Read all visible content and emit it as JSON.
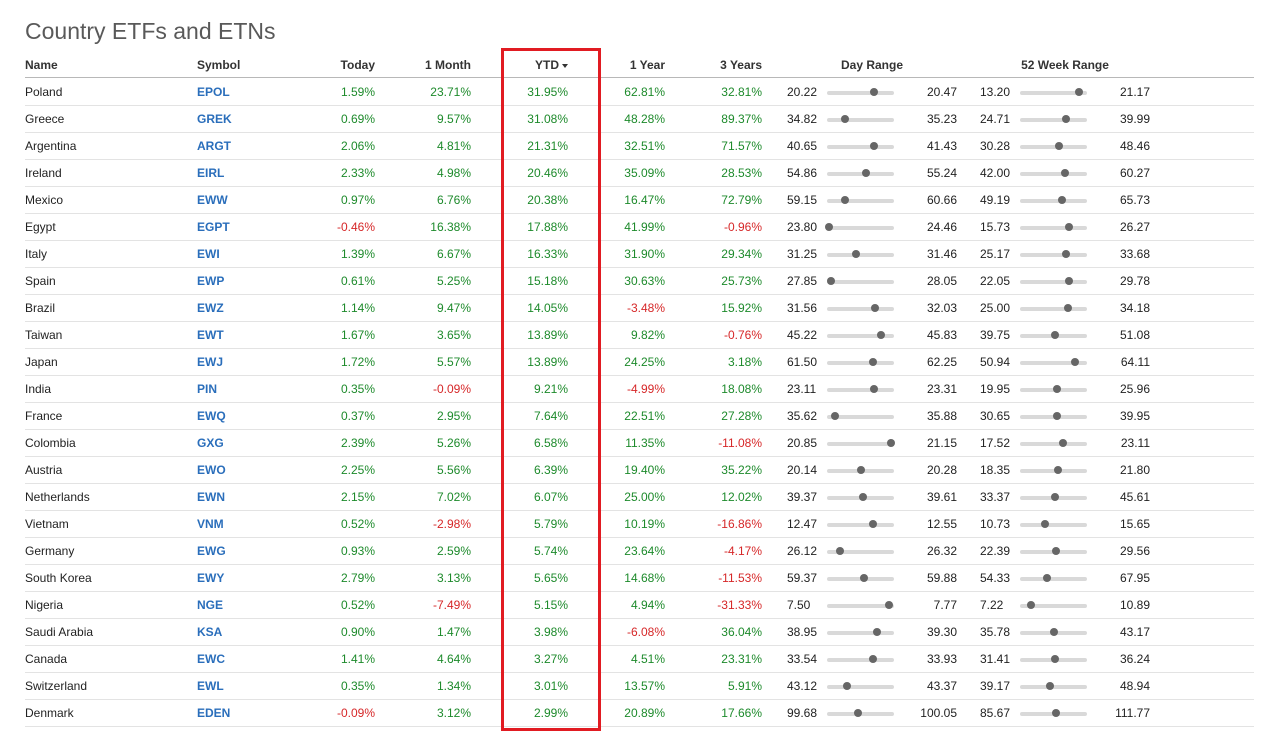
{
  "page": {
    "title": "Country ETFs and ETNs"
  },
  "table": {
    "headers": {
      "name": "Name",
      "symbol": "Symbol",
      "today": "Today",
      "month": "1 Month",
      "ytd": "YTD",
      "year": "1 Year",
      "years3": "3 Years",
      "day_range": "Day Range",
      "week52_range": "52 Week Range"
    },
    "sorted_column": "YTD",
    "sort_direction": "descending",
    "colors": {
      "positive": "#1d8a2b",
      "negative": "#d62728",
      "symbol": "#2a6ebb",
      "highlight_border": "#e11b22"
    },
    "rows": [
      {
        "name": "Poland",
        "symbol": "EPOL",
        "today": "1.59%",
        "month": "23.71%",
        "ytd": "31.95%",
        "year": "62.81%",
        "years3": "32.81%",
        "day_low": "20.22",
        "day_high": "20.47",
        "day_pos": 0.7,
        "w_low": "13.20",
        "w_high": "21.17",
        "w_pos": 0.88
      },
      {
        "name": "Greece",
        "symbol": "GREK",
        "today": "0.69%",
        "month": "9.57%",
        "ytd": "31.08%",
        "year": "48.28%",
        "years3": "89.37%",
        "day_low": "34.82",
        "day_high": "35.23",
        "day_pos": 0.27,
        "w_low": "24.71",
        "w_high": "39.99",
        "w_pos": 0.68
      },
      {
        "name": "Argentina",
        "symbol": "ARGT",
        "today": "2.06%",
        "month": "4.81%",
        "ytd": "21.31%",
        "year": "32.51%",
        "years3": "71.57%",
        "day_low": "40.65",
        "day_high": "41.43",
        "day_pos": 0.7,
        "w_low": "30.28",
        "w_high": "48.46",
        "w_pos": 0.58
      },
      {
        "name": "Ireland",
        "symbol": "EIRL",
        "today": "2.33%",
        "month": "4.98%",
        "ytd": "20.46%",
        "year": "35.09%",
        "years3": "28.53%",
        "day_low": "54.86",
        "day_high": "55.24",
        "day_pos": 0.58,
        "w_low": "42.00",
        "w_high": "60.27",
        "w_pos": 0.67
      },
      {
        "name": "Mexico",
        "symbol": "EWW",
        "today": "0.97%",
        "month": "6.76%",
        "ytd": "20.38%",
        "year": "16.47%",
        "years3": "72.79%",
        "day_low": "59.15",
        "day_high": "60.66",
        "day_pos": 0.27,
        "w_low": "49.19",
        "w_high": "65.73",
        "w_pos": 0.62
      },
      {
        "name": "Egypt",
        "symbol": "EGPT",
        "today": "-0.46%",
        "month": "16.38%",
        "ytd": "17.88%",
        "year": "41.99%",
        "years3": "-0.96%",
        "day_low": "23.80",
        "day_high": "24.46",
        "day_pos": 0.03,
        "w_low": "15.73",
        "w_high": "26.27",
        "w_pos": 0.73
      },
      {
        "name": "Italy",
        "symbol": "EWI",
        "today": "1.39%",
        "month": "6.67%",
        "ytd": "16.33%",
        "year": "31.90%",
        "years3": "29.34%",
        "day_low": "31.25",
        "day_high": "31.46",
        "day_pos": 0.43,
        "w_low": "25.17",
        "w_high": "33.68",
        "w_pos": 0.69
      },
      {
        "name": "Spain",
        "symbol": "EWP",
        "today": "0.61%",
        "month": "5.25%",
        "ytd": "15.18%",
        "year": "30.63%",
        "years3": "25.73%",
        "day_low": "27.85",
        "day_high": "28.05",
        "day_pos": 0.06,
        "w_low": "22.05",
        "w_high": "29.78",
        "w_pos": 0.73
      },
      {
        "name": "Brazil",
        "symbol": "EWZ",
        "today": "1.14%",
        "month": "9.47%",
        "ytd": "14.05%",
        "year": "-3.48%",
        "years3": "15.92%",
        "day_low": "31.56",
        "day_high": "32.03",
        "day_pos": 0.72,
        "w_low": "25.00",
        "w_high": "34.18",
        "w_pos": 0.72
      },
      {
        "name": "Taiwan",
        "symbol": "EWT",
        "today": "1.67%",
        "month": "3.65%",
        "ytd": "13.89%",
        "year": "9.82%",
        "years3": "-0.76%",
        "day_low": "45.22",
        "day_high": "45.83",
        "day_pos": 0.8,
        "w_low": "39.75",
        "w_high": "51.08",
        "w_pos": 0.52
      },
      {
        "name": "Japan",
        "symbol": "EWJ",
        "today": "1.72%",
        "month": "5.57%",
        "ytd": "13.89%",
        "year": "24.25%",
        "years3": "3.18%",
        "day_low": "61.50",
        "day_high": "62.25",
        "day_pos": 0.68,
        "w_low": "50.94",
        "w_high": "64.11",
        "w_pos": 0.82
      },
      {
        "name": "India",
        "symbol": "PIN",
        "today": "0.35%",
        "month": "-0.09%",
        "ytd": "9.21%",
        "year": "-4.99%",
        "years3": "18.08%",
        "day_low": "23.11",
        "day_high": "23.31",
        "day_pos": 0.7,
        "w_low": "19.95",
        "w_high": "25.96",
        "w_pos": 0.55
      },
      {
        "name": "France",
        "symbol": "EWQ",
        "today": "0.37%",
        "month": "2.95%",
        "ytd": "7.64%",
        "year": "22.51%",
        "years3": "27.28%",
        "day_low": "35.62",
        "day_high": "35.88",
        "day_pos": 0.12,
        "w_low": "30.65",
        "w_high": "39.95",
        "w_pos": 0.55
      },
      {
        "name": "Colombia",
        "symbol": "GXG",
        "today": "2.39%",
        "month": "5.26%",
        "ytd": "6.58%",
        "year": "11.35%",
        "years3": "-11.08%",
        "day_low": "20.85",
        "day_high": "21.15",
        "day_pos": 0.95,
        "w_low": "17.52",
        "w_high": "23.11",
        "w_pos": 0.64
      },
      {
        "name": "Austria",
        "symbol": "EWO",
        "today": "2.25%",
        "month": "5.56%",
        "ytd": "6.39%",
        "year": "19.40%",
        "years3": "35.22%",
        "day_low": "20.14",
        "day_high": "20.28",
        "day_pos": 0.51,
        "w_low": "18.35",
        "w_high": "21.80",
        "w_pos": 0.56
      },
      {
        "name": "Netherlands",
        "symbol": "EWN",
        "today": "2.15%",
        "month": "7.02%",
        "ytd": "6.07%",
        "year": "25.00%",
        "years3": "12.02%",
        "day_low": "39.37",
        "day_high": "39.61",
        "day_pos": 0.53,
        "w_low": "33.37",
        "w_high": "45.61",
        "w_pos": 0.52
      },
      {
        "name": "Vietnam",
        "symbol": "VNM",
        "today": "0.52%",
        "month": "-2.98%",
        "ytd": "5.79%",
        "year": "10.19%",
        "years3": "-16.86%",
        "day_low": "12.47",
        "day_high": "12.55",
        "day_pos": 0.69,
        "w_low": "10.73",
        "w_high": "15.65",
        "w_pos": 0.38
      },
      {
        "name": "Germany",
        "symbol": "EWG",
        "today": "0.93%",
        "month": "2.59%",
        "ytd": "5.74%",
        "year": "23.64%",
        "years3": "-4.17%",
        "day_low": "26.12",
        "day_high": "26.32",
        "day_pos": 0.2,
        "w_low": "22.39",
        "w_high": "29.56",
        "w_pos": 0.54
      },
      {
        "name": "South Korea",
        "symbol": "EWY",
        "today": "2.79%",
        "month": "3.13%",
        "ytd": "5.65%",
        "year": "14.68%",
        "years3": "-11.53%",
        "day_low": "59.37",
        "day_high": "59.88",
        "day_pos": 0.55,
        "w_low": "54.33",
        "w_high": "67.95",
        "w_pos": 0.4
      },
      {
        "name": "Nigeria",
        "symbol": "NGE",
        "today": "0.52%",
        "month": "-7.49%",
        "ytd": "5.15%",
        "year": "4.94%",
        "years3": "-31.33%",
        "day_low": "7.50",
        "day_high": "7.77",
        "day_pos": 0.92,
        "w_low": "7.22",
        "w_high": "10.89",
        "w_pos": 0.16
      },
      {
        "name": "Saudi Arabia",
        "symbol": "KSA",
        "today": "0.90%",
        "month": "1.47%",
        "ytd": "3.98%",
        "year": "-6.08%",
        "years3": "36.04%",
        "day_low": "38.95",
        "day_high": "39.30",
        "day_pos": 0.75,
        "w_low": "35.78",
        "w_high": "43.17",
        "w_pos": 0.5
      },
      {
        "name": "Canada",
        "symbol": "EWC",
        "today": "1.41%",
        "month": "4.64%",
        "ytd": "3.27%",
        "year": "4.51%",
        "years3": "23.31%",
        "day_low": "33.54",
        "day_high": "33.93",
        "day_pos": 0.68,
        "w_low": "31.41",
        "w_high": "36.24",
        "w_pos": 0.52
      },
      {
        "name": "Switzerland",
        "symbol": "EWL",
        "today": "0.35%",
        "month": "1.34%",
        "ytd": "3.01%",
        "year": "13.57%",
        "years3": "5.91%",
        "day_low": "43.12",
        "day_high": "43.37",
        "day_pos": 0.3,
        "w_low": "39.17",
        "w_high": "48.94",
        "w_pos": 0.45
      },
      {
        "name": "Denmark",
        "symbol": "EDEN",
        "today": "-0.09%",
        "month": "3.12%",
        "ytd": "2.99%",
        "year": "20.89%",
        "years3": "17.66%",
        "day_low": "99.68",
        "day_high": "100.05",
        "day_pos": 0.47,
        "w_low": "85.67",
        "w_high": "111.77",
        "w_pos": 0.54
      }
    ]
  }
}
